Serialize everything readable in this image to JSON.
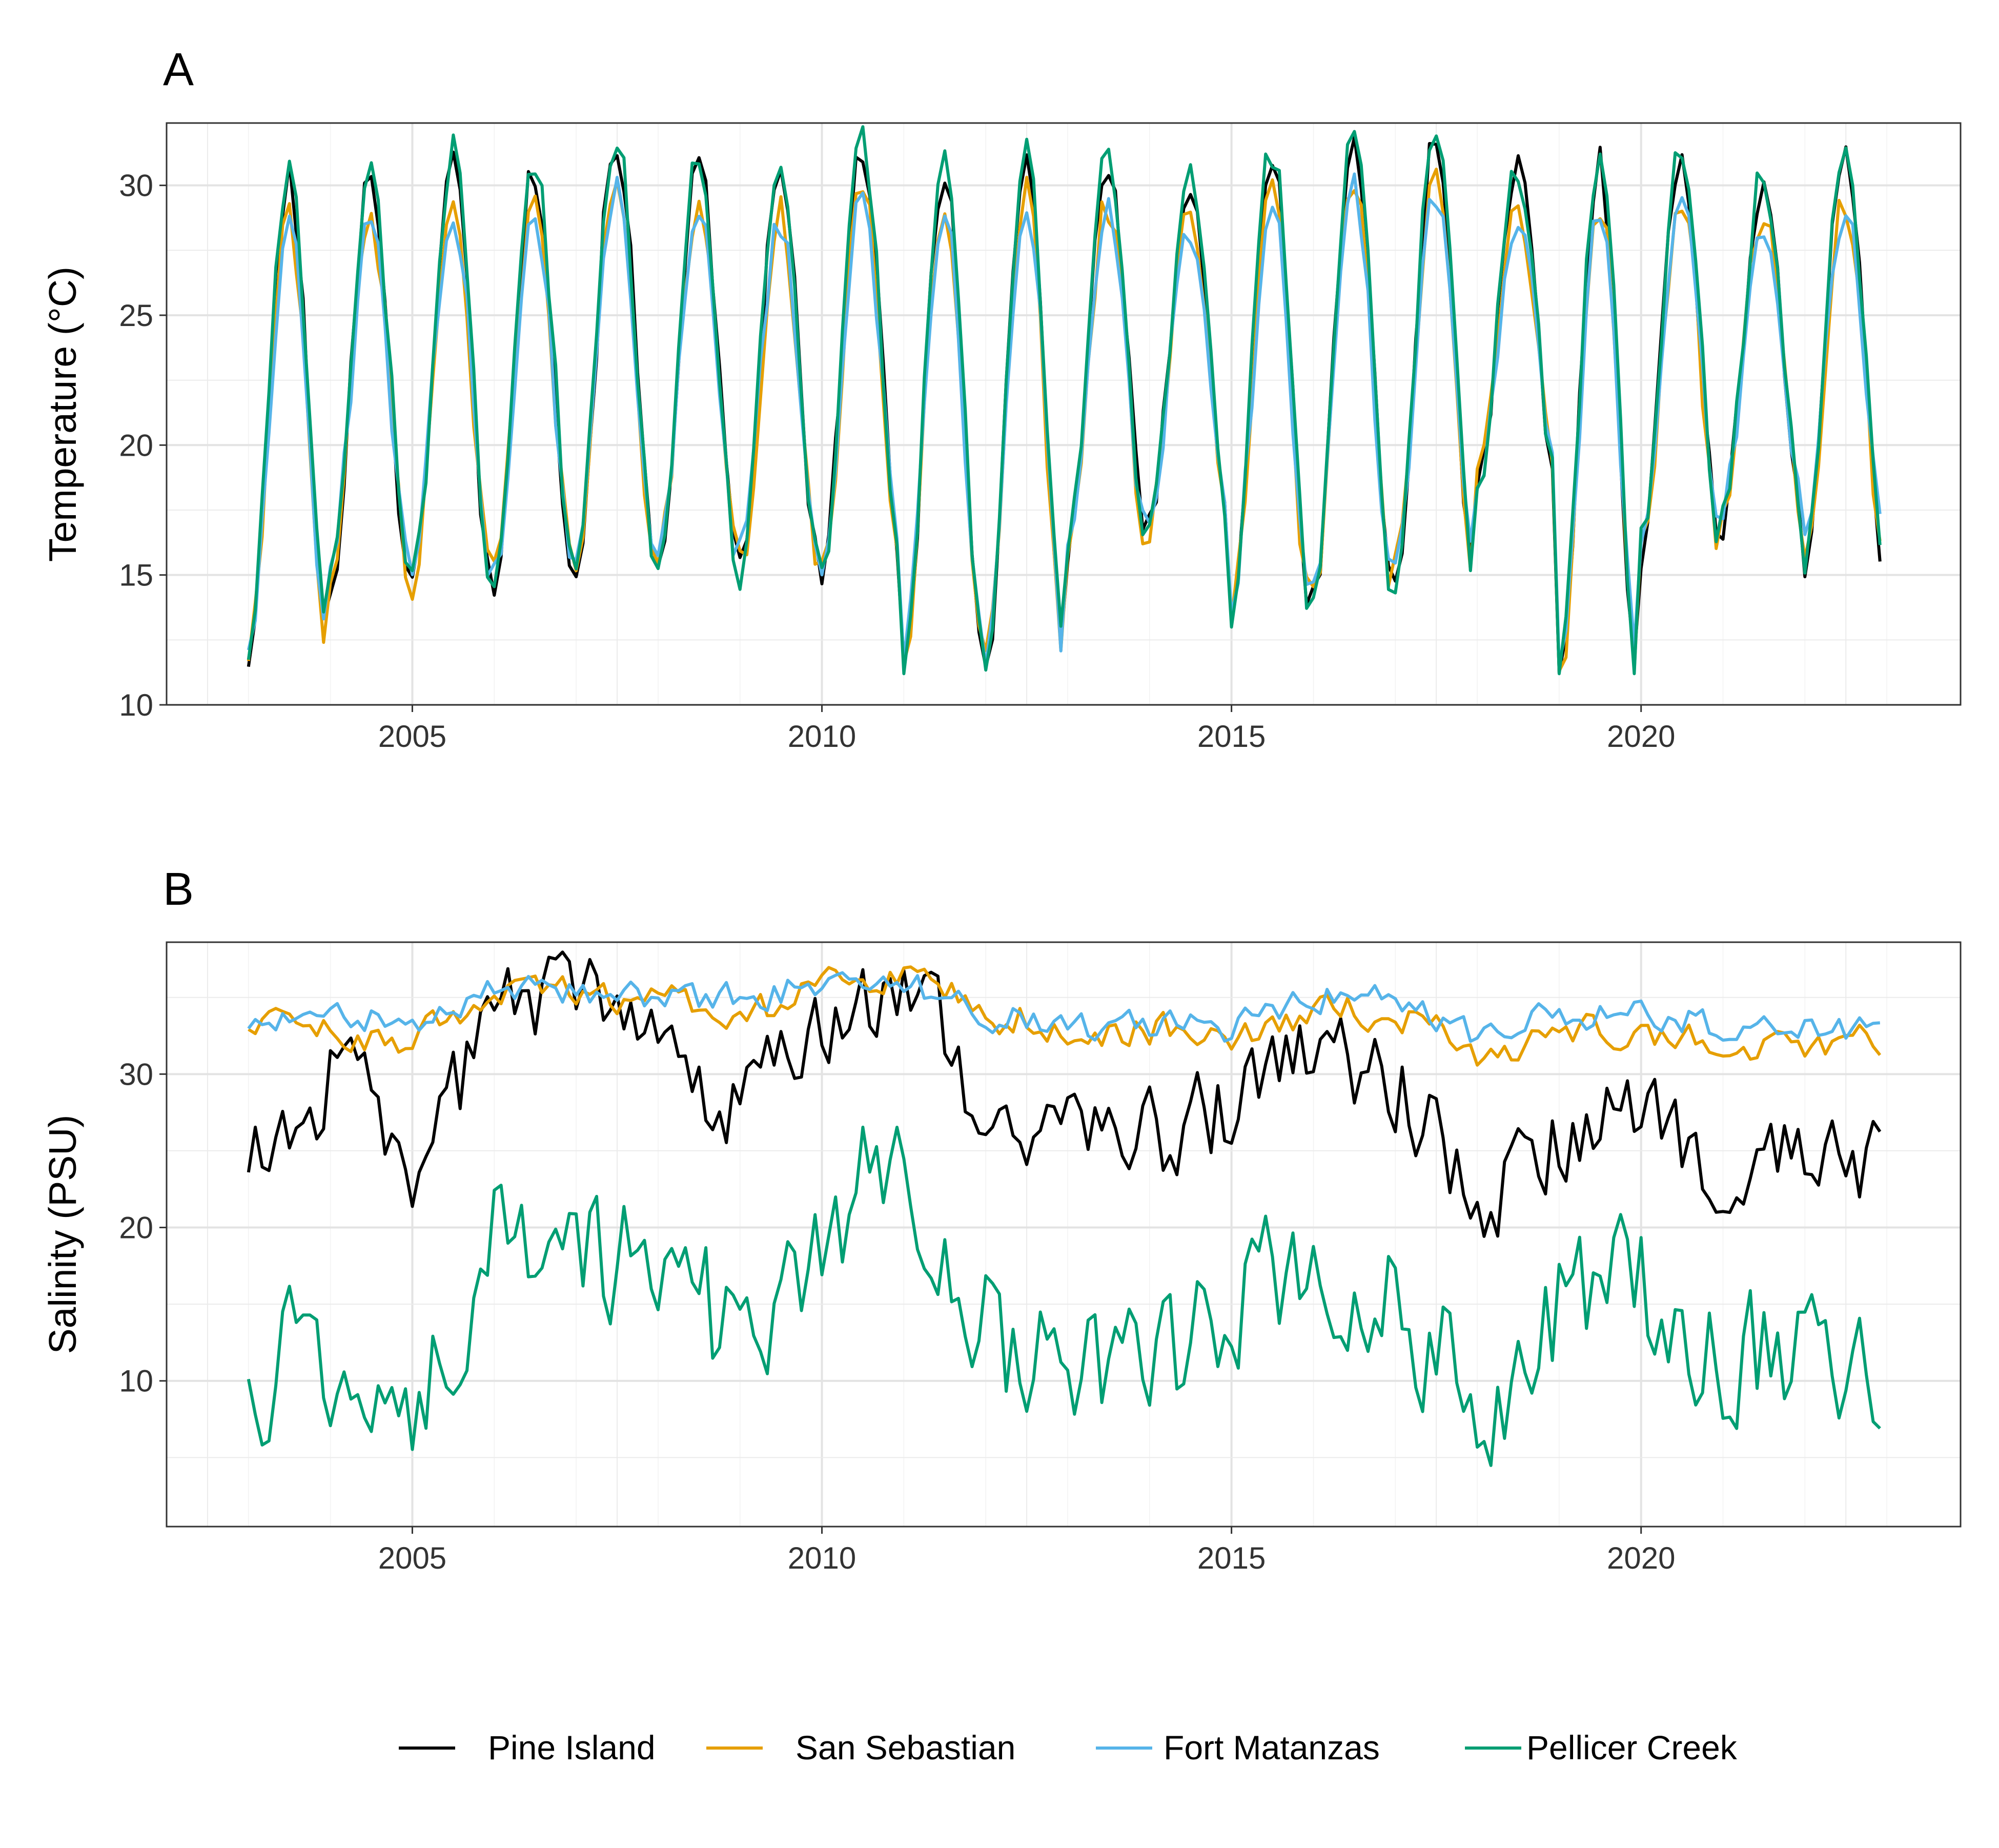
{
  "figure": {
    "panels": [
      "A",
      "B"
    ]
  },
  "legend": {
    "items": [
      {
        "label": "Pine Island",
        "color": "#000000"
      },
      {
        "label": "San Sebastian",
        "color": "#E69F00"
      },
      {
        "label": "Fort Matanzas",
        "color": "#56B4E9"
      },
      {
        "label": "Pellicer Creek",
        "color": "#009E73"
      }
    ]
  },
  "chart_data": [
    {
      "type": "line",
      "panel": "A",
      "title": "",
      "xlabel": "",
      "ylabel": "Temperature (°C)",
      "xlim": [
        2002.0,
        2023.9
      ],
      "ylim": [
        10,
        32.4
      ],
      "x_ticks": [
        2005,
        2010,
        2015,
        2020
      ],
      "y_ticks": [
        10,
        15,
        20,
        25,
        30
      ],
      "x_tick_labels": [
        "2005",
        "2010",
        "2015",
        "2020"
      ],
      "y_tick_labels": [
        "10",
        "15",
        "20",
        "25",
        "30"
      ],
      "grid": true,
      "x_start": 2003.0,
      "x_step_years": 0.0833333,
      "annual_cycle": {
        "winter_min": [
          12.0,
          14.8,
          14.5,
          15.0,
          15.3,
          15.5,
          15.2,
          15.0,
          11.7,
          11.5,
          16.0,
          17.0,
          13.5,
          14.3,
          15.0,
          18.3,
          11.0,
          16.0,
          17.2,
          15.7,
          15.8
        ],
        "summer_max": [
          30.0,
          30.0,
          30.7,
          30.3,
          31.5,
          30.5,
          30.0,
          31.0,
          30.5,
          31.0,
          30.5,
          30.0,
          30.8,
          31.5,
          31.5,
          30.3,
          30.5,
          30.8,
          30.0,
          30.8
        ]
      },
      "series": [
        {
          "name": "Pine Island",
          "color": "#000000",
          "summer_offset": 0.3,
          "winter_offset": -0.2,
          "min_value": 9.9
        },
        {
          "name": "San Sebastian",
          "color": "#E69F00",
          "summer_offset": -1.2,
          "winter_offset": 0.0,
          "min_value": 11.3
        },
        {
          "name": "Fort Matanzas",
          "color": "#56B4E9",
          "summer_offset": -1.6,
          "winter_offset": 0.4,
          "min_value": 11.5
        },
        {
          "name": "Pellicer Creek",
          "color": "#009E73",
          "summer_offset": 0.6,
          "winter_offset": 0.0,
          "min_value": 11.2
        }
      ]
    },
    {
      "type": "line",
      "panel": "B",
      "title": "",
      "xlabel": "",
      "ylabel": "Salinity (PSU)",
      "xlim": [
        2002.0,
        2023.9
      ],
      "ylim": [
        0.5,
        38.6
      ],
      "x_ticks": [
        2005,
        2010,
        2015,
        2020
      ],
      "y_ticks": [
        10,
        20,
        30
      ],
      "x_tick_labels": [
        "2005",
        "2010",
        "2015",
        "2020"
      ],
      "y_tick_labels": [
        "10",
        "20",
        "30"
      ],
      "grid": true,
      "x_start": 2003.0,
      "x_step_years": 0.0833333,
      "yearly_means": {
        "years": [
          2003,
          2004,
          2005,
          2006,
          2007,
          2008,
          2009,
          2010,
          2011,
          2012,
          2013,
          2014,
          2015,
          2016,
          2017,
          2018,
          2019,
          2020,
          2021,
          2022
        ],
        "Pine Island": [
          24,
          30,
          24,
          34,
          36,
          30,
          27,
          34,
          36,
          27,
          26,
          26,
          28,
          31,
          29,
          21,
          26,
          27,
          23,
          24
        ],
        "San Sebastian": [
          33,
          33,
          32,
          36,
          35,
          35,
          34,
          36,
          36,
          34,
          33,
          33,
          32,
          34,
          34,
          31,
          33,
          33,
          32,
          32
        ],
        "Fort Matanzas": [
          33,
          34,
          33,
          36,
          35,
          35,
          35,
          36,
          36,
          34,
          33,
          33,
          33,
          35,
          35,
          32,
          34,
          34,
          33,
          33
        ],
        "Pellicer Creek": [
          10,
          12,
          9,
          20,
          20,
          15,
          13,
          20,
          25,
          13,
          10,
          11,
          14,
          19,
          16,
          8,
          15,
          16,
          11,
          12
        ]
      },
      "series_style": [
        {
          "name": "Pine Island",
          "color": "#000000",
          "noise": 4.5
        },
        {
          "name": "San Sebastian",
          "color": "#E69F00",
          "noise": 1.6
        },
        {
          "name": "Fort Matanzas",
          "color": "#56B4E9",
          "noise": 1.4
        },
        {
          "name": "Pellicer Creek",
          "color": "#009E73",
          "noise": 6.5
        }
      ]
    }
  ]
}
